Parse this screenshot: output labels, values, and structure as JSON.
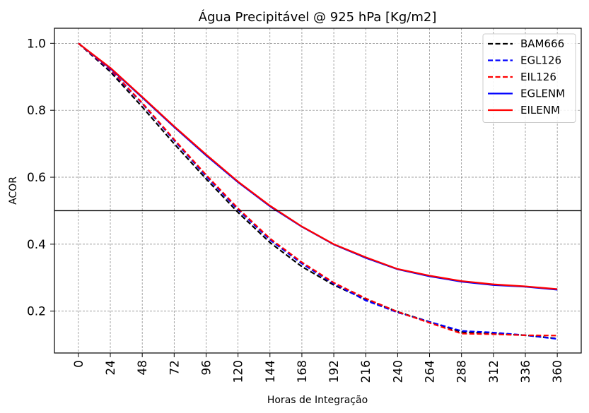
{
  "chart_data": {
    "type": "line",
    "title": "Água Precipitável @ 925 hPa [Kg/m2]",
    "xlabel": "Horas de Integração",
    "ylabel": "ACOR",
    "categories": [
      "0",
      "24",
      "48",
      "72",
      "96",
      "120",
      "144",
      "168",
      "192",
      "216",
      "240",
      "264",
      "288",
      "312",
      "336",
      "360"
    ],
    "x": [
      0,
      24,
      48,
      72,
      96,
      120,
      144,
      168,
      192,
      216,
      240,
      264,
      288,
      312,
      336,
      360
    ],
    "xlim": [
      -18,
      378
    ],
    "ylim": [
      0.075,
      1.045
    ],
    "yticks": [
      0.2,
      0.4,
      0.6,
      0.8,
      1.0
    ],
    "ytick_labels": [
      "0.2",
      "0.4",
      "0.6",
      "0.8",
      "1.0"
    ],
    "grid": true,
    "reference_line": 0.5,
    "legend_position": "top-right",
    "series": [
      {
        "name": "BAM666",
        "color": "#000000",
        "style": "dashed",
        "values": [
          1.0,
          0.915,
          0.81,
          0.7,
          0.595,
          0.495,
          0.405,
          0.333,
          0.278,
          0.235,
          0.198,
          0.168,
          0.138,
          0.133,
          0.128,
          0.118
        ]
      },
      {
        "name": "EGL126",
        "color": "#0000ff",
        "style": "dashed",
        "values": [
          1.0,
          0.92,
          0.82,
          0.71,
          0.603,
          0.503,
          0.413,
          0.342,
          0.282,
          0.232,
          0.196,
          0.168,
          0.141,
          0.136,
          0.128,
          0.117
        ]
      },
      {
        "name": "EIL126",
        "color": "#ff0000",
        "style": "dashed",
        "values": [
          1.0,
          0.922,
          0.822,
          0.713,
          0.607,
          0.507,
          0.417,
          0.346,
          0.285,
          0.238,
          0.198,
          0.165,
          0.133,
          0.131,
          0.128,
          0.127
        ]
      },
      {
        "name": "EGLENM",
        "color": "#0000ff",
        "style": "solid",
        "values": [
          1.0,
          0.925,
          0.838,
          0.75,
          0.665,
          0.585,
          0.513,
          0.452,
          0.399,
          0.359,
          0.325,
          0.304,
          0.288,
          0.278,
          0.273,
          0.264
        ]
      },
      {
        "name": "EILENM",
        "color": "#ff0000",
        "style": "solid",
        "values": [
          1.0,
          0.927,
          0.84,
          0.752,
          0.668,
          0.587,
          0.515,
          0.453,
          0.4,
          0.361,
          0.326,
          0.306,
          0.29,
          0.28,
          0.274,
          0.266
        ]
      }
    ]
  }
}
